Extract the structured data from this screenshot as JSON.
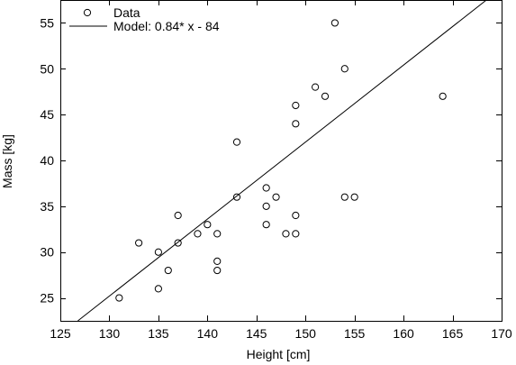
{
  "chart_data": {
    "type": "scatter",
    "xlabel": "Height [cm]",
    "ylabel": "Mass [kg]",
    "xlim": [
      125,
      170
    ],
    "ylim": [
      22.5,
      57.5
    ],
    "x_ticks": [
      125,
      130,
      135,
      140,
      145,
      150,
      155,
      160,
      165,
      170
    ],
    "y_ticks": [
      25,
      30,
      35,
      40,
      45,
      50,
      55
    ],
    "grid": false,
    "legend_position": "top-left",
    "legend": [
      {
        "label": "Data",
        "marker": "circle"
      },
      {
        "label": "Model: 0.84* x - 84",
        "marker": "line"
      }
    ],
    "series": [
      {
        "name": "Data",
        "kind": "points",
        "points": [
          [
            131,
            25
          ],
          [
            133,
            31
          ],
          [
            135,
            26
          ],
          [
            135,
            30
          ],
          [
            136,
            28
          ],
          [
            137,
            31
          ],
          [
            137,
            34
          ],
          [
            139,
            32
          ],
          [
            140,
            33
          ],
          [
            141,
            29
          ],
          [
            141,
            28
          ],
          [
            141,
            32
          ],
          [
            143,
            42
          ],
          [
            143,
            36
          ],
          [
            146,
            37
          ],
          [
            146,
            35
          ],
          [
            146,
            33
          ],
          [
            147,
            36
          ],
          [
            148,
            32
          ],
          [
            149,
            32
          ],
          [
            149,
            34
          ],
          [
            149,
            46
          ],
          [
            149,
            44
          ],
          [
            151,
            48
          ],
          [
            152,
            47
          ],
          [
            153,
            55
          ],
          [
            154,
            50
          ],
          [
            154,
            36
          ],
          [
            155,
            36
          ],
          [
            164,
            47
          ]
        ]
      },
      {
        "name": "Model: 0.84* x - 84",
        "kind": "line",
        "slope": 0.84,
        "intercept": -84
      }
    ],
    "colors": {
      "axis": "#000000",
      "marker": "#000000",
      "line": "#000000"
    }
  }
}
